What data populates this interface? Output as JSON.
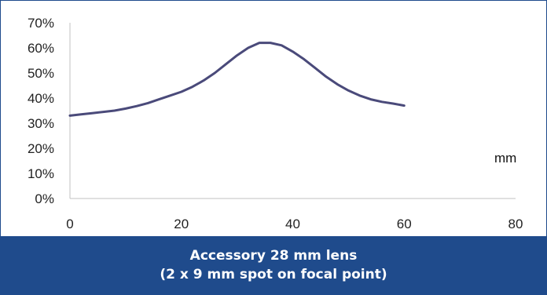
{
  "caption": {
    "line1": "Accessory 28 mm lens",
    "line2": "(2 x 9 mm spot on focal point)"
  },
  "chart_data": {
    "type": "line",
    "title": "",
    "xlabel": "",
    "ylabel": "",
    "unit_annotation": "mm",
    "xlim": [
      0,
      80
    ],
    "ylim": [
      0,
      70
    ],
    "x_ticks": [
      "0",
      "20",
      "40",
      "60",
      "80"
    ],
    "y_ticks": [
      "0%",
      "10%",
      "20%",
      "30%",
      "40%",
      "50%",
      "60%",
      "70%"
    ],
    "grid": false,
    "line_color": "#4a4a7a",
    "series": [
      {
        "x": [
          0,
          2,
          4,
          6,
          8,
          10,
          12,
          14,
          16,
          18,
          20,
          22,
          24,
          26,
          28,
          30,
          32,
          34,
          36,
          38,
          40,
          42,
          44,
          46,
          48,
          50,
          52,
          54,
          56,
          58,
          60
        ],
        "y": [
          33,
          33.5,
          34,
          34.5,
          35,
          35.8,
          36.8,
          38,
          39.5,
          41,
          42.5,
          44.5,
          47,
          50,
          53.5,
          57,
          60,
          62,
          62,
          61,
          58.5,
          55.5,
          52,
          48.5,
          45.5,
          43,
          41,
          39.5,
          38.5,
          37.8,
          37
        ]
      }
    ]
  }
}
